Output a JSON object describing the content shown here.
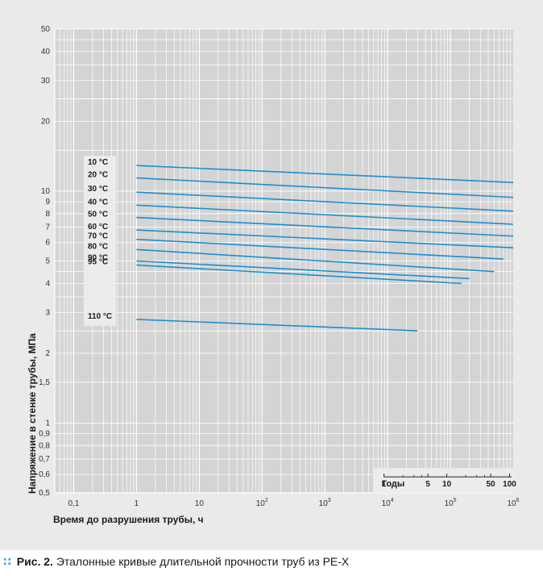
{
  "caption": {
    "prefix": "Рис. 2.",
    "text": "Эталонные кривые длительной прочности труб из PE-X"
  },
  "chart_data": {
    "type": "line",
    "title": "",
    "xlabel": "Время до разрушения трубы, ч",
    "ylabel": "Напряжение в стенке трубы, МПа",
    "x_scale": "log",
    "y_scale": "log",
    "xlim": [
      0.05,
      1000000
    ],
    "ylim": [
      0.5,
      50
    ],
    "grid": true,
    "x_ticks": [
      {
        "value": 0.1,
        "label": "0,1"
      },
      {
        "value": 1,
        "label": "1"
      },
      {
        "value": 10,
        "label": "10"
      },
      {
        "value": 100,
        "label": "10",
        "sup": "2"
      },
      {
        "value": 1000,
        "label": "10",
        "sup": "3"
      },
      {
        "value": 10000,
        "label": "10",
        "sup": "4"
      },
      {
        "value": 100000,
        "label": "10",
        "sup": "5"
      },
      {
        "value": 1000000,
        "label": "10",
        "sup": "6"
      }
    ],
    "y_ticks": [
      {
        "value": 50,
        "label": "50"
      },
      {
        "value": 40,
        "label": "40"
      },
      {
        "value": 30,
        "label": "30"
      },
      {
        "value": 20,
        "label": "20"
      },
      {
        "value": 10,
        "label": "10"
      },
      {
        "value": 9,
        "label": "9"
      },
      {
        "value": 8,
        "label": "8"
      },
      {
        "value": 7,
        "label": "7"
      },
      {
        "value": 6,
        "label": "6"
      },
      {
        "value": 5,
        "label": "5"
      },
      {
        "value": 4,
        "label": "4"
      },
      {
        "value": 3,
        "label": "3"
      },
      {
        "value": 2,
        "label": "2"
      },
      {
        "value": 1.5,
        "label": "1,5"
      },
      {
        "value": 1,
        "label": "1"
      },
      {
        "value": 0.9,
        "label": "0,9"
      },
      {
        "value": 0.8,
        "label": "0,8"
      },
      {
        "value": 0.7,
        "label": "0,7"
      },
      {
        "value": 0.6,
        "label": "0,6"
      },
      {
        "value": 0.5,
        "label": "0,5"
      }
    ],
    "years_axis": {
      "label": "Годы",
      "ticks": [
        {
          "value": 1,
          "label": "1"
        },
        {
          "value": 5,
          "label": "5"
        },
        {
          "value": 10,
          "label": "10"
        },
        {
          "value": 50,
          "label": "50"
        },
        {
          "value": 100,
          "label": "100"
        }
      ]
    },
    "series": [
      {
        "name": "10 °C",
        "x": [
          1,
          1000000
        ],
        "y": [
          12.9,
          10.9
        ]
      },
      {
        "name": "20 °C",
        "x": [
          1,
          1000000
        ],
        "y": [
          11.4,
          9.4
        ]
      },
      {
        "name": "30 °C",
        "x": [
          1,
          1000000
        ],
        "y": [
          9.9,
          8.2
        ]
      },
      {
        "name": "40 °C",
        "x": [
          1,
          1000000
        ],
        "y": [
          8.7,
          7.2
        ]
      },
      {
        "name": "50 °C",
        "x": [
          1,
          1000000
        ],
        "y": [
          7.7,
          6.4
        ]
      },
      {
        "name": "60 °C",
        "x": [
          1,
          1000000
        ],
        "y": [
          6.8,
          5.7
        ]
      },
      {
        "name": "70 °C",
        "x": [
          1,
          700000
        ],
        "y": [
          6.2,
          5.1
        ]
      },
      {
        "name": "80 °C",
        "x": [
          1,
          500000
        ],
        "y": [
          5.6,
          4.5
        ]
      },
      {
        "name": "90 °C",
        "x": [
          1,
          200000
        ],
        "y": [
          5.0,
          4.2
        ]
      },
      {
        "name": "95 °C",
        "x": [
          1,
          150000
        ],
        "y": [
          4.8,
          4.0
        ]
      },
      {
        "name": "110 °C",
        "x": [
          1,
          30000
        ],
        "y": [
          2.8,
          2.5
        ]
      }
    ],
    "line_color": "#1b8fd2"
  }
}
